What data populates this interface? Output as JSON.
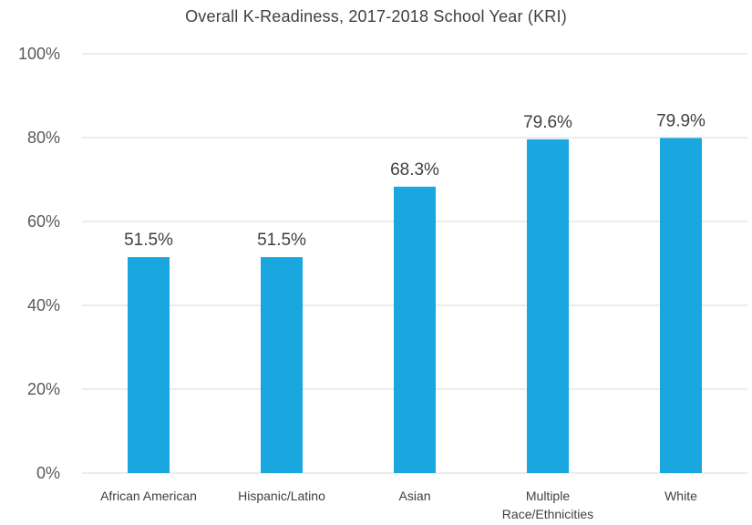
{
  "chart_data": {
    "type": "bar",
    "title": "Overall K-Readiness, 2017-2018 School Year (KRI)",
    "xlabel": "",
    "ylabel": "",
    "categories": [
      "African American",
      "Hispanic/Latino",
      "Asian",
      "Multiple Race/Ethnicities",
      "White"
    ],
    "category_lines": [
      [
        "African American"
      ],
      [
        "Hispanic/Latino"
      ],
      [
        "Asian"
      ],
      [
        "Multiple",
        "Race/Ethnicities"
      ],
      [
        "White"
      ]
    ],
    "values": [
      51.5,
      51.5,
      68.3,
      79.6,
      79.9
    ],
    "data_labels": [
      "51.5%",
      "51.5%",
      "68.3%",
      "79.6%",
      "79.9%"
    ],
    "ylim": [
      0,
      100
    ],
    "yticks": [
      0,
      20,
      40,
      60,
      80,
      100
    ],
    "ytick_labels": [
      "0%",
      "20%",
      "40%",
      "60%",
      "80%",
      "100%"
    ],
    "grid": true,
    "legend": "none",
    "bar_color": "#1aa7e0"
  }
}
